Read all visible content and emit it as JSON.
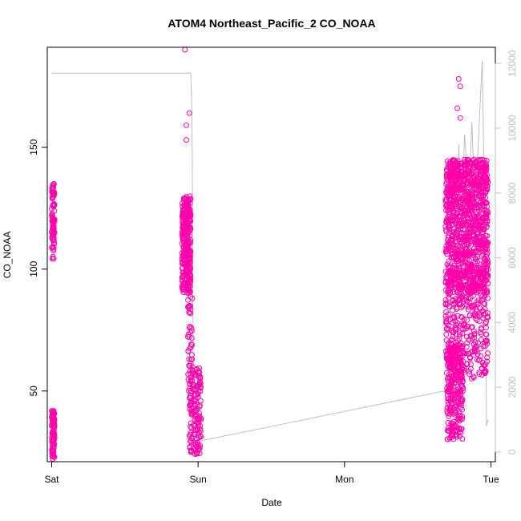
{
  "chart_data": {
    "type": "scatter",
    "title": "ATOM4 Northeast_Pacific_2 CO_NOAA",
    "xlabel": "Date",
    "ylabel": "CO_NOAA",
    "x_ticks": [
      "Sat",
      "Sun",
      "Mon",
      "Tue"
    ],
    "x_range_days": [
      -0.03,
      3.03
    ],
    "y_left_ticks": [
      50,
      100,
      150
    ],
    "y_left_range": [
      21,
      191
    ],
    "y_right_ticks": [
      0,
      2000,
      4000,
      6000,
      8000,
      10000,
      12000
    ],
    "y_right_range": [
      -300,
      12500
    ],
    "colors": {
      "points": "#ff00aa",
      "line": "#bebebe",
      "right_axis": "#bebebe"
    },
    "series": [
      {
        "marker": "open-circle",
        "axis": "left",
        "clusters": [
          {
            "x": [
              0.0,
              0.02
            ],
            "y": [
              104,
              135
            ],
            "n": 90
          },
          {
            "x": [
              0.0,
              0.02
            ],
            "y": [
              22,
              42
            ],
            "n": 90
          },
          {
            "x": [
              0.89,
              0.95
            ],
            "y": [
              90,
              130
            ],
            "n": 320
          },
          {
            "x": [
              0.93,
              0.96
            ],
            "y": [
              50,
              90
            ],
            "n": 40
          },
          {
            "x": [
              0.94,
              1.02
            ],
            "y": [
              24,
              60
            ],
            "n": 160
          },
          {
            "x": [
              2.69,
              2.98
            ],
            "y": [
              90,
              145
            ],
            "n": 1100
          },
          {
            "x": [
              2.69,
              2.98
            ],
            "y": [
              55,
              100
            ],
            "n": 350
          },
          {
            "x": [
              2.7,
              2.81
            ],
            "y": [
              30,
              70
            ],
            "n": 260
          }
        ],
        "outliers": [
          {
            "x": 0.91,
            "y": 190
          },
          {
            "x": 0.92,
            "y": 159
          },
          {
            "x": 0.92,
            "y": 153
          },
          {
            "x": 0.94,
            "y": 164
          },
          {
            "x": 2.78,
            "y": 178
          },
          {
            "x": 2.79,
            "y": 175
          },
          {
            "x": 2.77,
            "y": 166
          },
          {
            "x": 2.79,
            "y": 162
          }
        ]
      },
      {
        "kind": "line",
        "axis": "right",
        "points": [
          {
            "x": 0.0,
            "y": 11700
          },
          {
            "x": 0.95,
            "y": 11700
          },
          {
            "x": 0.955,
            "y": 11000
          },
          {
            "x": 0.955,
            "y": 11200
          },
          {
            "x": 0.96,
            "y": 9000
          },
          {
            "x": 0.965,
            "y": 4000
          },
          {
            "x": 0.97,
            "y": 300
          },
          {
            "x": 2.7,
            "y": 1900
          },
          {
            "x": 2.72,
            "y": 3200
          },
          {
            "x": 2.74,
            "y": 1000
          },
          {
            "x": 2.76,
            "y": 4800
          },
          {
            "x": 2.78,
            "y": 9500
          },
          {
            "x": 2.8,
            "y": 7200
          },
          {
            "x": 2.82,
            "y": 9800
          },
          {
            "x": 2.85,
            "y": 8000
          },
          {
            "x": 2.87,
            "y": 10200
          },
          {
            "x": 2.89,
            "y": 7600
          },
          {
            "x": 2.91,
            "y": 9200
          },
          {
            "x": 2.94,
            "y": 12100
          },
          {
            "x": 2.96,
            "y": 6500
          },
          {
            "x": 2.97,
            "y": 800
          },
          {
            "x": 2.98,
            "y": 1000
          }
        ]
      }
    ]
  }
}
